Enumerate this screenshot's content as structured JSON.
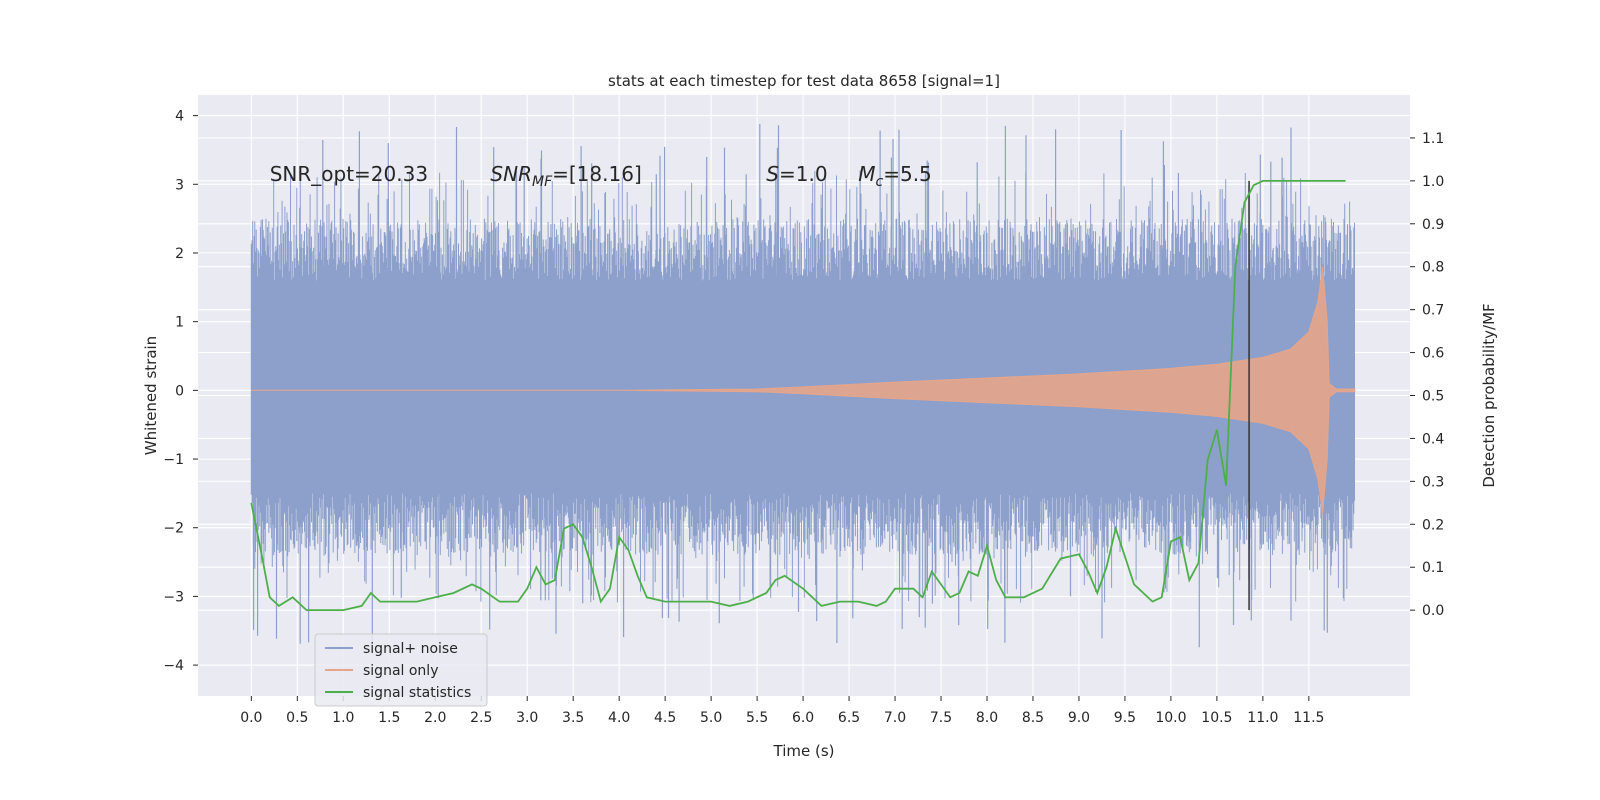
{
  "chart_data": {
    "type": "line",
    "title": "stats at each timestep for test data 8658 [signal=1]",
    "xlabel": "Time (s)",
    "ylabel_left": "Whitened strain",
    "ylabel_right": "Detection probability/MF",
    "xlim": [
      -0.58,
      12.6
    ],
    "ylim_left": [
      -4.45,
      4.3
    ],
    "ylim_right": [
      -0.2,
      1.2
    ],
    "x_ticks": [
      0.0,
      0.5,
      1.0,
      1.5,
      2.0,
      2.5,
      3.0,
      3.5,
      4.0,
      4.5,
      5.0,
      5.5,
      6.0,
      6.5,
      7.0,
      7.5,
      8.0,
      8.5,
      9.0,
      9.5,
      10.0,
      10.5,
      11.0,
      11.5
    ],
    "x_tick_labels": [
      "0.0",
      "0.5",
      "1.0",
      "1.5",
      "2.0",
      "2.5",
      "3.0",
      "3.5",
      "4.0",
      "4.5",
      "5.0",
      "5.5",
      "6.0",
      "6.5",
      "7.0",
      "7.5",
      "8.0",
      "8.5",
      "9.0",
      "9.5",
      "10.0",
      "10.5",
      "11.0",
      "11.5"
    ],
    "y_left_ticks": [
      -4,
      -3,
      -2,
      -1,
      0,
      1,
      2,
      3,
      4
    ],
    "y_left_tick_labels": [
      "−4",
      "−3",
      "−2",
      "−1",
      "0",
      "1",
      "2",
      "3",
      "4"
    ],
    "y_right_ticks": [
      0.0,
      0.1,
      0.2,
      0.3,
      0.4,
      0.5,
      0.6,
      0.7,
      0.8,
      0.9,
      1.0,
      1.1
    ],
    "y_right_tick_labels": [
      "0.0",
      "0.1",
      "0.2",
      "0.3",
      "0.4",
      "0.5",
      "0.6",
      "0.7",
      "0.8",
      "0.9",
      "1.0",
      "1.1"
    ],
    "grid": true,
    "legend_position": "lower-left",
    "series": [
      {
        "name": "signal+ noise",
        "color": "#8da0cb",
        "axis": "left",
        "t_start": 0.0,
        "t_end": 12.0,
        "core_amplitude": 1.2,
        "peak_amplitude_max": 3.9,
        "peak_amplitude_min": -3.8
      },
      {
        "name": "signal only",
        "color": "#e6a58a",
        "axis": "left",
        "envelope": {
          "t": [
            0.0,
            2.0,
            4.0,
            5.5,
            6.0,
            7.0,
            8.0,
            9.0,
            10.0,
            10.5,
            11.0,
            11.3,
            11.5,
            11.6,
            11.65,
            11.7,
            11.72,
            11.8,
            12.0
          ],
          "amp": [
            0.0,
            0.0,
            0.0,
            0.02,
            0.05,
            0.12,
            0.18,
            0.24,
            0.32,
            0.38,
            0.48,
            0.6,
            0.85,
            1.3,
            1.8,
            1.0,
            0.1,
            0.02,
            0.02
          ]
        }
      },
      {
        "name": "signal statistics",
        "color": "#4daf4a",
        "axis": "right",
        "x": [
          0.0,
          0.12,
          0.2,
          0.3,
          0.45,
          0.6,
          0.8,
          1.0,
          1.2,
          1.3,
          1.4,
          1.6,
          1.8,
          2.0,
          2.2,
          2.4,
          2.5,
          2.7,
          2.9,
          3.0,
          3.1,
          3.2,
          3.3,
          3.4,
          3.5,
          3.6,
          3.7,
          3.8,
          3.9,
          4.0,
          4.1,
          4.2,
          4.3,
          4.5,
          4.7,
          5.0,
          5.2,
          5.4,
          5.6,
          5.7,
          5.8,
          6.0,
          6.2,
          6.4,
          6.6,
          6.8,
          6.9,
          7.0,
          7.2,
          7.3,
          7.4,
          7.5,
          7.6,
          7.7,
          7.8,
          7.9,
          8.0,
          8.1,
          8.2,
          8.4,
          8.6,
          8.8,
          9.0,
          9.1,
          9.2,
          9.3,
          9.4,
          9.6,
          9.8,
          9.9,
          10.0,
          10.1,
          10.2,
          10.3,
          10.4,
          10.5,
          10.6,
          10.7,
          10.8,
          10.9,
          11.0,
          11.2,
          11.5,
          11.9
        ],
        "y": [
          0.25,
          0.12,
          0.03,
          0.01,
          0.03,
          0.0,
          0.0,
          0.0,
          0.01,
          0.04,
          0.02,
          0.02,
          0.02,
          0.03,
          0.04,
          0.06,
          0.05,
          0.02,
          0.02,
          0.05,
          0.1,
          0.06,
          0.07,
          0.19,
          0.2,
          0.17,
          0.1,
          0.02,
          0.05,
          0.17,
          0.14,
          0.08,
          0.03,
          0.02,
          0.02,
          0.02,
          0.01,
          0.02,
          0.04,
          0.07,
          0.08,
          0.05,
          0.01,
          0.02,
          0.02,
          0.01,
          0.02,
          0.05,
          0.05,
          0.03,
          0.09,
          0.06,
          0.03,
          0.04,
          0.09,
          0.08,
          0.15,
          0.07,
          0.03,
          0.03,
          0.05,
          0.12,
          0.13,
          0.09,
          0.04,
          0.1,
          0.19,
          0.06,
          0.02,
          0.03,
          0.16,
          0.17,
          0.07,
          0.11,
          0.35,
          0.42,
          0.29,
          0.8,
          0.95,
          0.99,
          1.0,
          1.0,
          1.0,
          1.0
        ]
      }
    ],
    "vline": {
      "x": 10.85,
      "y_min": -3.2,
      "y_max": 3.05,
      "color": "#333333"
    },
    "annotations": [
      {
        "text": "SNR_opt=20.33",
        "x": 0.2,
        "y": 3.05
      },
      {
        "text": "SNR",
        "sub": "MF",
        "suffix": "=[18.16]",
        "x": 2.6,
        "y": 3.05,
        "italic": true
      },
      {
        "text": "S",
        "suffix": "=1.0",
        "x": 5.6,
        "y": 3.05,
        "italic": true
      },
      {
        "text": "M",
        "sub": "c",
        "suffix": "=5.5",
        "x": 6.6,
        "y": 3.05,
        "italic": true
      }
    ],
    "legend": [
      {
        "label": "signal+ noise",
        "color": "#8da0cb"
      },
      {
        "label": "signal only",
        "color": "#e6a58a"
      },
      {
        "label": "signal statistics",
        "color": "#4daf4a"
      }
    ]
  }
}
